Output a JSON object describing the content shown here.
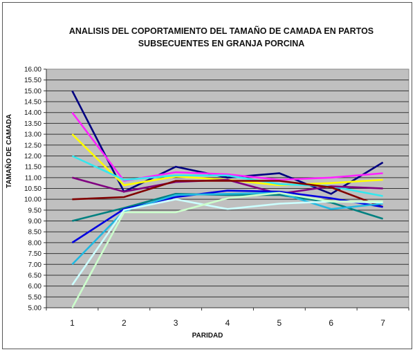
{
  "chart_data": {
    "type": "line",
    "title": "ANALISIS DEL COPORTAMIENTO DEL TAMAÑO DE CAMADA EN PARTOS SUBSECUENTES EN GRANJA PORCINA",
    "title_lines": [
      "ANALISIS DEL COPORTAMIENTO DEL TAMAÑO DE CAMADA EN PARTOS",
      "SUBSECUENTES EN GRANJA PORCINA"
    ],
    "xlabel": "PARIDAD",
    "ylabel": "TAMAÑO DE CAMADA",
    "categories": [
      "1",
      "2",
      "3",
      "4",
      "5",
      "6",
      "7"
    ],
    "ylim": [
      5.0,
      16.0
    ],
    "yticks": [
      "5.00",
      "5.50",
      "6.00",
      "6.50",
      "7.00",
      "7.50",
      "8.00",
      "8.50",
      "9.00",
      "9.50",
      "10.00",
      "10.50",
      "11.00",
      "11.50",
      "12.00",
      "12.50",
      "13.00",
      "13.50",
      "14.00",
      "14.50",
      "15.00",
      "15.50",
      "16.00"
    ],
    "grid": true,
    "legend": "none",
    "plot_background": "#c0c0c0",
    "series": [
      {
        "name": "navy",
        "color": "#000080",
        "values": [
          15.0,
          10.35,
          11.5,
          11.0,
          11.2,
          10.25,
          11.7
        ]
      },
      {
        "name": "magenta",
        "color": "#ff22ff",
        "values": [
          14.0,
          10.85,
          11.25,
          11.15,
          10.9,
          11.0,
          11.2
        ]
      },
      {
        "name": "yellow",
        "color": "#ffff00",
        "values": [
          13.0,
          10.65,
          11.05,
          10.9,
          10.65,
          10.75,
          10.9
        ]
      },
      {
        "name": "cyan",
        "color": "#33e8ee",
        "values": [
          12.0,
          10.9,
          11.1,
          11.1,
          10.7,
          10.6,
          10.15
        ]
      },
      {
        "name": "purple",
        "color": "#800080",
        "values": [
          11.0,
          10.35,
          10.8,
          10.9,
          10.25,
          10.6,
          10.5
        ]
      },
      {
        "name": "maroon",
        "color": "#800000",
        "values": [
          10.0,
          10.1,
          10.85,
          10.85,
          10.85,
          10.55,
          9.65
        ]
      },
      {
        "name": "teal",
        "color": "#008080",
        "values": [
          9.0,
          9.6,
          10.25,
          10.2,
          10.2,
          9.85,
          9.1
        ]
      },
      {
        "name": "blue",
        "color": "#0000e0",
        "values": [
          8.0,
          9.55,
          10.1,
          10.4,
          10.35,
          10.05,
          9.65
        ]
      },
      {
        "name": "sky-blue",
        "color": "#22b8e0",
        "values": [
          7.0,
          9.45,
          10.2,
          10.25,
          10.3,
          9.55,
          9.8
        ]
      },
      {
        "name": "light-cyan",
        "color": "#ccffff",
        "values": [
          6.05,
          9.5,
          10.0,
          9.55,
          9.8,
          9.9,
          9.85
        ]
      },
      {
        "name": "light-green",
        "color": "#ccffcc",
        "values": [
          5.0,
          9.4,
          9.4,
          10.05,
          10.3,
          9.9,
          9.9
        ]
      }
    ]
  }
}
